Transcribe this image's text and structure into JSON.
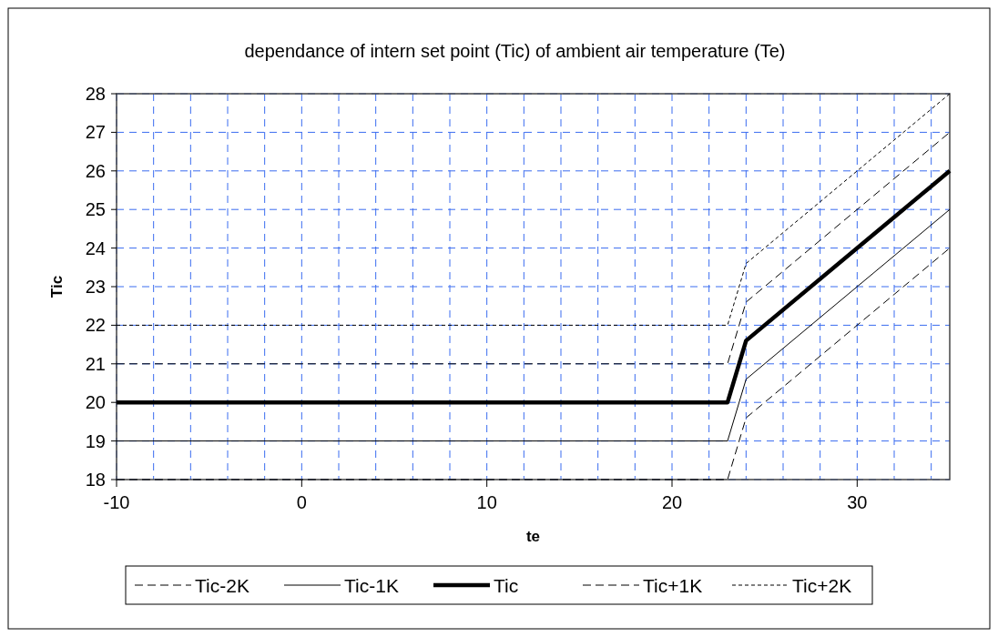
{
  "chart_data": {
    "type": "line",
    "title": "dependance of intern set point (Tic) of ambient air temperature (Te)",
    "xlabel": "te",
    "ylabel": "Tic",
    "x": [
      -10,
      23,
      24,
      35
    ],
    "series": [
      {
        "name": "Tic-2K",
        "color": "#000000",
        "line_style": "dashed",
        "values": [
          18,
          18,
          19.6,
          24
        ]
      },
      {
        "name": "Tic-1K",
        "color": "#000000",
        "line_style": "solid",
        "values": [
          19,
          19,
          20.6,
          25
        ]
      },
      {
        "name": "Tic",
        "color": "#000000",
        "line_style": "solid",
        "values": [
          20,
          20,
          21.6,
          26
        ]
      },
      {
        "name": "Tic+1K",
        "color": "#000000",
        "line_style": "dashed",
        "values": [
          21,
          21,
          22.6,
          27
        ]
      },
      {
        "name": "Tic+2K",
        "color": "#000000",
        "line_style": "dotted",
        "values": [
          22,
          22,
          23.6,
          28
        ]
      }
    ],
    "xlim": [
      -10,
      35
    ],
    "xticks": [
      -10,
      {
        "value": -8,
        "label": null
      },
      {
        "value": -6,
        "label": null
      },
      {
        "value": -4,
        "label": null
      },
      {
        "value": -2,
        "label": null
      },
      0,
      {
        "value": 2,
        "label": null
      },
      {
        "value": 4,
        "label": null
      },
      {
        "value": 6,
        "label": null
      },
      {
        "value": 8,
        "label": null
      },
      10,
      {
        "value": 12,
        "label": null
      },
      {
        "value": 14,
        "label": null
      },
      {
        "value": 16,
        "label": null
      },
      {
        "value": 18,
        "label": null
      },
      20,
      {
        "value": 22,
        "label": null
      },
      {
        "value": 24,
        "label": null
      },
      {
        "value": 26,
        "label": null
      },
      {
        "value": 28,
        "label": null
      },
      30,
      {
        "value": 32,
        "label": null
      },
      {
        "value": 34,
        "label": null
      }
    ],
    "ylim": [
      18,
      28
    ],
    "yticks": [
      18,
      19,
      20,
      21,
      22,
      23,
      24,
      25,
      26,
      27,
      28
    ],
    "grid": true,
    "legend": "bottom",
    "marker": "none"
  }
}
